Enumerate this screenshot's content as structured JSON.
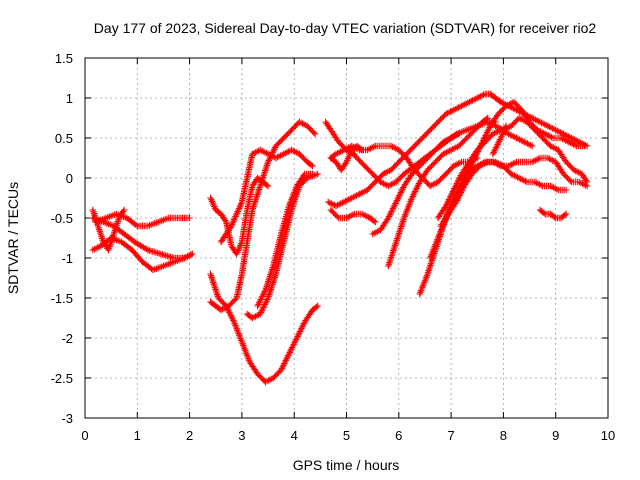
{
  "chart_data": {
    "type": "scatter",
    "title": "Day 177 of 2023, Sidereal Day-to-day VTEC variation (SDTVAR) for receiver rio2",
    "xlabel": "GPS time / hours",
    "ylabel": "SDTVAR / TECUs",
    "xlim": [
      0,
      10
    ],
    "ylim": [
      -3,
      1.5
    ],
    "x_ticks": [
      0,
      1,
      2,
      3,
      4,
      5,
      6,
      7,
      8,
      9,
      10
    ],
    "y_ticks": [
      -3,
      -2.5,
      -2,
      -1.5,
      -1,
      -0.5,
      0,
      0.5,
      1,
      1.5
    ],
    "x_tick_labels": [
      "0",
      "1",
      "2",
      "3",
      "4",
      "5",
      "6",
      "7",
      "8",
      "9",
      "10"
    ],
    "y_tick_labels": [
      "-3",
      "-2.5",
      "-2",
      "-1.5",
      "-1",
      "-0.5",
      "0",
      "0.5",
      "1",
      "1.5"
    ],
    "grid": true,
    "legend": "none",
    "marker": "plus",
    "color": "#ff0000",
    "series": [
      {
        "x": [
          0.15,
          0.3,
          0.5,
          0.7,
          0.9,
          1.1,
          1.3,
          1.5,
          1.7,
          1.9,
          2.05
        ],
        "y": [
          -0.9,
          -0.85,
          -0.75,
          -0.8,
          -0.9,
          -1.05,
          -1.15,
          -1.1,
          -1.05,
          -1.0,
          -0.95
        ]
      },
      {
        "x": [
          0.15,
          0.35,
          0.55,
          0.75,
          0.95,
          1.2,
          1.45,
          1.7,
          1.9,
          2.05
        ],
        "y": [
          -0.5,
          -0.55,
          -0.6,
          -0.7,
          -0.8,
          -0.9,
          -0.95,
          -1.0,
          -1.0,
          -0.95
        ]
      },
      {
        "x": [
          0.2,
          0.4,
          0.6,
          0.8,
          1.0,
          1.2,
          1.4,
          1.6,
          1.8,
          2.0
        ],
        "y": [
          -0.55,
          -0.5,
          -0.45,
          -0.5,
          -0.6,
          -0.6,
          -0.55,
          -0.5,
          -0.5,
          -0.5
        ]
      },
      {
        "x": [
          0.15,
          0.25,
          0.35,
          0.45,
          0.55,
          0.65,
          0.75
        ],
        "y": [
          -0.4,
          -0.6,
          -0.8,
          -0.9,
          -0.7,
          -0.5,
          -0.4
        ]
      },
      {
        "x": [
          2.4,
          2.5,
          2.6,
          2.7,
          2.8,
          2.9,
          3.0,
          3.1,
          3.2,
          3.3,
          3.4,
          3.5
        ],
        "y": [
          -0.25,
          -0.4,
          -0.45,
          -0.55,
          -0.85,
          -0.95,
          -0.8,
          -0.4,
          -0.1,
          0.0,
          -0.05,
          -0.1
        ]
      },
      {
        "x": [
          2.4,
          2.5,
          2.6,
          2.75,
          2.9,
          3.0,
          3.1,
          3.2,
          3.35,
          3.5,
          3.65,
          3.8,
          3.95,
          4.1,
          4.25,
          4.4
        ],
        "y": [
          -1.55,
          -1.6,
          -1.65,
          -1.6,
          -1.5,
          -1.2,
          -0.8,
          -0.4,
          -0.1,
          0.2,
          0.4,
          0.5,
          0.6,
          0.7,
          0.65,
          0.55
        ]
      },
      {
        "x": [
          2.6,
          2.8,
          3.0,
          3.1,
          3.2,
          3.35,
          3.5,
          3.65,
          3.8,
          3.95,
          4.1,
          4.25,
          4.35
        ],
        "y": [
          -0.8,
          -0.6,
          -0.3,
          0.0,
          0.3,
          0.35,
          0.3,
          0.25,
          0.3,
          0.35,
          0.3,
          0.2,
          0.15
        ]
      },
      {
        "x": [
          2.4,
          2.55,
          2.7,
          2.85,
          3.0,
          3.15,
          3.3,
          3.45,
          3.6,
          3.75,
          3.9,
          4.05,
          4.2,
          4.35,
          4.45
        ],
        "y": [
          -1.2,
          -1.5,
          -1.6,
          -1.8,
          -2.05,
          -2.3,
          -2.45,
          -2.55,
          -2.5,
          -2.4,
          -2.2,
          -2.0,
          -1.8,
          -1.65,
          -1.6
        ]
      },
      {
        "x": [
          3.1,
          3.2,
          3.35,
          3.5,
          3.65,
          3.8,
          3.95,
          4.1,
          4.25,
          4.45
        ],
        "y": [
          -1.7,
          -1.75,
          -1.7,
          -1.5,
          -1.2,
          -0.8,
          -0.4,
          -0.1,
          0.0,
          0.05
        ]
      },
      {
        "x": [
          3.3,
          3.45,
          3.6,
          3.75,
          3.9,
          4.05,
          4.2,
          4.35
        ],
        "y": [
          -1.6,
          -1.4,
          -1.1,
          -0.7,
          -0.35,
          -0.1,
          0.05,
          0.05
        ]
      },
      {
        "x": [
          4.7,
          4.8,
          4.9,
          5.0,
          5.1,
          5.2,
          5.3
        ],
        "y": [
          0.25,
          0.2,
          0.1,
          0.2,
          0.35,
          0.4,
          0.35
        ]
      },
      {
        "x": [
          4.7,
          4.8,
          4.95,
          5.1,
          5.25,
          5.4,
          5.55,
          5.7,
          5.85,
          6.0,
          6.15,
          6.3,
          6.45,
          6.6,
          6.75,
          6.9,
          7.05,
          7.2,
          7.35,
          7.5
        ],
        "y": [
          0.25,
          0.3,
          0.35,
          0.4,
          0.35,
          0.35,
          0.4,
          0.4,
          0.4,
          0.35,
          0.25,
          0.1,
          0.0,
          -0.1,
          -0.05,
          0.05,
          0.15,
          0.2,
          0.2,
          0.25
        ]
      },
      {
        "x": [
          4.65,
          4.8,
          4.95,
          5.1,
          5.25,
          5.4,
          5.55,
          5.7,
          5.85,
          6.0,
          6.15,
          6.3,
          6.45,
          6.6,
          6.75,
          6.9,
          7.05,
          7.2,
          7.35,
          7.5,
          7.65,
          7.75,
          7.85,
          7.95,
          8.1,
          8.25,
          8.4,
          8.55,
          8.7,
          8.85,
          9.0,
          9.15,
          9.3,
          9.45,
          9.6
        ],
        "y": [
          -0.3,
          -0.35,
          -0.3,
          -0.25,
          -0.2,
          -0.15,
          -0.05,
          0.05,
          0.1,
          0.2,
          0.3,
          0.4,
          0.5,
          0.6,
          0.7,
          0.8,
          0.85,
          0.9,
          0.95,
          1.0,
          1.05,
          1.05,
          1.0,
          0.95,
          0.9,
          0.85,
          0.8,
          0.75,
          0.7,
          0.65,
          0.6,
          0.55,
          0.5,
          0.45,
          0.4
        ]
      },
      {
        "x": [
          4.7,
          4.85,
          5.0,
          5.15,
          5.3,
          5.45,
          5.55
        ],
        "y": [
          -0.4,
          -0.5,
          -0.5,
          -0.45,
          -0.45,
          -0.5,
          -0.55
        ]
      },
      {
        "x": [
          4.6,
          4.7,
          4.85,
          5.0,
          5.15
        ],
        "y": [
          0.7,
          0.6,
          0.45,
          0.35,
          0.3
        ]
      },
      {
        "x": [
          5.05,
          5.2,
          5.35,
          5.5,
          5.65,
          5.8,
          5.95,
          6.1,
          6.3,
          6.5,
          6.7,
          6.9,
          7.1,
          7.3,
          7.5,
          7.7,
          7.85
        ],
        "y": [
          0.35,
          0.25,
          0.15,
          0.05,
          -0.05,
          -0.1,
          -0.05,
          0.05,
          0.15,
          0.25,
          0.35,
          0.45,
          0.55,
          0.6,
          0.65,
          0.7,
          0.7
        ]
      },
      {
        "x": [
          5.5,
          5.65,
          5.8,
          5.95,
          6.1,
          6.25,
          6.4,
          6.55,
          6.7,
          6.85,
          7.0,
          7.15
        ],
        "y": [
          -0.7,
          -0.65,
          -0.5,
          -0.3,
          -0.1,
          0.05,
          0.15,
          0.25,
          0.35,
          0.45,
          0.5,
          0.55
        ]
      },
      {
        "x": [
          5.8,
          5.95,
          6.1,
          6.25,
          6.4,
          6.55,
          6.7,
          6.85,
          7.0,
          7.15,
          7.3,
          7.45,
          7.6,
          7.7
        ],
        "y": [
          -1.1,
          -0.8,
          -0.5,
          -0.25,
          -0.05,
          0.1,
          0.2,
          0.3,
          0.35,
          0.4,
          0.5,
          0.6,
          0.7,
          0.75
        ]
      },
      {
        "x": [
          6.4,
          6.55,
          6.7,
          6.85,
          7.0,
          7.15,
          7.3,
          7.45,
          7.6,
          7.75,
          7.9,
          8.05,
          8.2,
          8.35,
          8.5,
          8.65,
          8.8,
          8.95,
          9.1,
          9.25,
          9.4,
          9.55
        ],
        "y": [
          -1.45,
          -1.2,
          -0.9,
          -0.6,
          -0.35,
          -0.15,
          0.05,
          0.25,
          0.45,
          0.65,
          0.8,
          0.9,
          0.95,
          0.85,
          0.7,
          0.6,
          0.55,
          0.5,
          0.5,
          0.45,
          0.4,
          0.4
        ]
      },
      {
        "x": [
          6.6,
          6.75,
          6.9,
          7.05,
          7.2,
          7.35,
          7.5,
          7.65,
          7.8,
          7.95,
          8.1,
          8.25,
          8.4,
          8.55,
          8.7,
          8.85,
          9.0,
          9.15,
          9.3,
          9.45,
          9.6
        ],
        "y": [
          -1.0,
          -0.75,
          -0.5,
          -0.25,
          -0.05,
          0.1,
          0.15,
          0.2,
          0.2,
          0.15,
          0.15,
          0.2,
          0.2,
          0.2,
          0.25,
          0.25,
          0.2,
          0.05,
          -0.05,
          -0.05,
          -0.1
        ]
      },
      {
        "x": [
          6.8,
          6.95,
          7.1,
          7.25,
          7.4,
          7.55,
          7.7,
          7.85,
          8.0,
          8.15,
          8.3,
          8.45,
          8.6,
          8.75,
          8.9,
          9.05,
          9.2
        ],
        "y": [
          -0.6,
          -0.45,
          -0.3,
          -0.1,
          0.05,
          0.15,
          0.2,
          0.2,
          0.15,
          0.05,
          0.0,
          -0.05,
          -0.05,
          -0.1,
          -0.1,
          -0.15,
          -0.15
        ]
      },
      {
        "x": [
          6.75,
          6.9,
          7.05,
          7.2,
          7.35,
          7.5,
          7.65,
          7.8,
          7.95,
          8.1,
          8.25,
          8.4,
          8.55
        ],
        "y": [
          -0.5,
          -0.35,
          -0.15,
          0.05,
          0.2,
          0.35,
          0.45,
          0.55,
          0.6,
          0.55,
          0.5,
          0.45,
          0.4
        ]
      },
      {
        "x": [
          7.7,
          7.85,
          8.0,
          8.15,
          8.3,
          8.45,
          8.6,
          8.75,
          8.9,
          9.05,
          9.2,
          9.35,
          9.5,
          9.6
        ],
        "y": [
          0.7,
          0.65,
          0.6,
          0.65,
          0.75,
          0.7,
          0.6,
          0.5,
          0.4,
          0.35,
          0.2,
          0.1,
          0.05,
          -0.05
        ]
      },
      {
        "x": [
          7.8,
          7.95,
          8.05
        ],
        "y": [
          0.3,
          0.5,
          0.65
        ]
      },
      {
        "x": [
          8.7,
          8.8,
          8.9,
          9.0,
          9.1,
          9.2
        ],
        "y": [
          -0.4,
          -0.45,
          -0.45,
          -0.5,
          -0.5,
          -0.45
        ]
      }
    ]
  }
}
